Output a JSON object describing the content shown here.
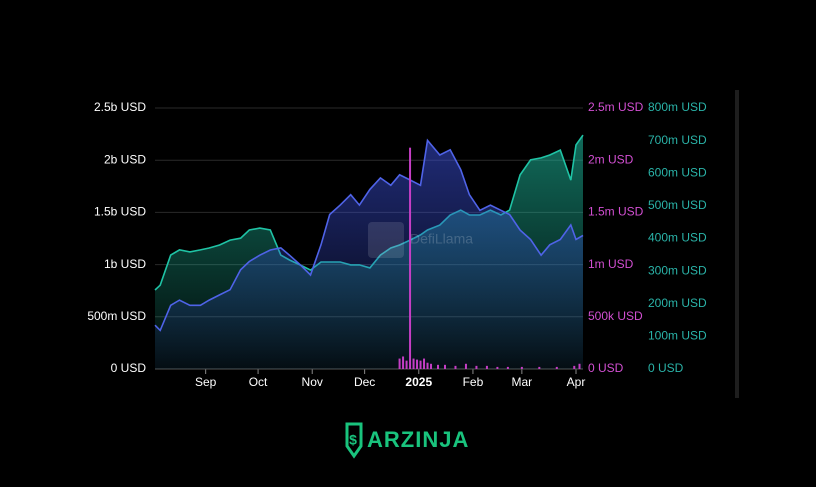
{
  "chart_data": {
    "type": "area",
    "watermark": "DefiLlama",
    "brand": "ARZINJA",
    "xlim": [
      0,
      245
    ],
    "xticks": [
      {
        "value": 29,
        "label": "Sep"
      },
      {
        "value": 59,
        "label": "Oct"
      },
      {
        "value": 90,
        "label": "Nov"
      },
      {
        "value": 120,
        "label": "Dec"
      },
      {
        "value": 151,
        "label": "2025"
      },
      {
        "value": 182,
        "label": "Feb"
      },
      {
        "value": 210,
        "label": "Mar"
      },
      {
        "value": 241,
        "label": "Apr"
      }
    ],
    "ylim": [
      0,
      2500000000
    ],
    "yticks": [
      {
        "value": 0,
        "label": "0 USD"
      },
      {
        "value": 500000000,
        "label": "500m USD"
      },
      {
        "value": 1000000000,
        "label": "1b USD"
      },
      {
        "value": 1500000000,
        "label": "1.5b USD"
      },
      {
        "value": 2000000000,
        "label": "2b USD"
      },
      {
        "value": 2500000000,
        "label": "2.5b USD"
      }
    ],
    "y3lim": [
      0,
      2500000
    ],
    "y3ticks": [
      {
        "value": 0,
        "label": "0 USD"
      },
      {
        "value": 500000,
        "label": "500k USD"
      },
      {
        "value": 1000000,
        "label": "1m USD"
      },
      {
        "value": 1500000,
        "label": "1.5m USD"
      },
      {
        "value": 2000000,
        "label": "2m USD"
      },
      {
        "value": 2500000,
        "label": "2.5m USD"
      }
    ],
    "y2lim": [
      0,
      800000000
    ],
    "y2ticks": [
      {
        "value": 0,
        "label": "0 USD"
      },
      {
        "value": 100000000,
        "label": "100m USD"
      },
      {
        "value": 200000000,
        "label": "200m USD"
      },
      {
        "value": 300000000,
        "label": "300m USD"
      },
      {
        "value": 400000000,
        "label": "400m USD"
      },
      {
        "value": 500000000,
        "label": "500m USD"
      },
      {
        "value": 600000000,
        "label": "600m USD"
      },
      {
        "value": 700000000,
        "label": "700m USD"
      },
      {
        "value": 800000000,
        "label": "800m USD"
      }
    ],
    "grid": true,
    "series": [
      {
        "type": "area",
        "axis": "y2",
        "color": "#1fc3a5",
        "x": [
          0,
          3,
          9,
          14,
          20,
          26,
          31,
          37,
          43,
          49,
          54,
          60,
          66,
          72,
          77,
          83,
          89,
          95,
          100,
          106,
          112,
          117,
          123,
          129,
          135,
          140,
          146,
          152,
          156,
          163,
          169,
          175,
          180,
          186,
          192,
          198,
          203,
          209,
          215,
          221,
          226,
          232,
          238,
          241,
          245
        ],
        "values": [
          242000000,
          257000000,
          349000000,
          365000000,
          359000000,
          365000000,
          371000000,
          380000000,
          395000000,
          401000000,
          426000000,
          432000000,
          426000000,
          349000000,
          334000000,
          319000000,
          303000000,
          328000000,
          328000000,
          328000000,
          319000000,
          319000000,
          310000000,
          349000000,
          371000000,
          380000000,
          395000000,
          411000000,
          426000000,
          441000000,
          472000000,
          487000000,
          472000000,
          472000000,
          487000000,
          472000000,
          487000000,
          595000000,
          641000000,
          647000000,
          656000000,
          671000000,
          579000000,
          687000000,
          717000000
        ]
      },
      {
        "type": "area",
        "axis": "y",
        "color": "#4f63e8",
        "x": [
          0,
          3,
          9,
          14,
          20,
          26,
          31,
          37,
          43,
          49,
          54,
          60,
          66,
          72,
          77,
          83,
          89,
          95,
          100,
          106,
          112,
          117,
          123,
          129,
          135,
          140,
          146,
          152,
          156,
          163,
          169,
          175,
          180,
          186,
          192,
          198,
          203,
          209,
          215,
          221,
          226,
          232,
          238,
          241,
          245
        ],
        "values": [
          420000000,
          370000000,
          610000000,
          660000000,
          610000000,
          610000000,
          660000000,
          710000000,
          760000000,
          950000000,
          1030000000,
          1090000000,
          1140000000,
          1160000000,
          1090000000,
          1000000000,
          900000000,
          1190000000,
          1480000000,
          1570000000,
          1670000000,
          1570000000,
          1720000000,
          1830000000,
          1760000000,
          1860000000,
          1810000000,
          1760000000,
          2190000000,
          2050000000,
          2100000000,
          1910000000,
          1670000000,
          1520000000,
          1570000000,
          1520000000,
          1480000000,
          1330000000,
          1240000000,
          1090000000,
          1190000000,
          1240000000,
          1380000000,
          1240000000,
          1280000000
        ]
      },
      {
        "type": "bar",
        "axis": "y3",
        "color": "#c53ec5",
        "x": [
          140,
          142,
          144,
          146,
          148,
          150,
          152,
          154,
          156,
          158,
          162,
          166,
          172,
          178,
          184,
          190,
          196,
          202,
          210,
          220,
          230,
          240,
          243
        ],
        "values": [
          100000,
          120000,
          80000,
          2120000,
          100000,
          90000,
          80000,
          100000,
          60000,
          50000,
          40000,
          40000,
          30000,
          50000,
          30000,
          30000,
          20000,
          20000,
          20000,
          20000,
          20000,
          30000,
          50000
        ]
      }
    ]
  }
}
